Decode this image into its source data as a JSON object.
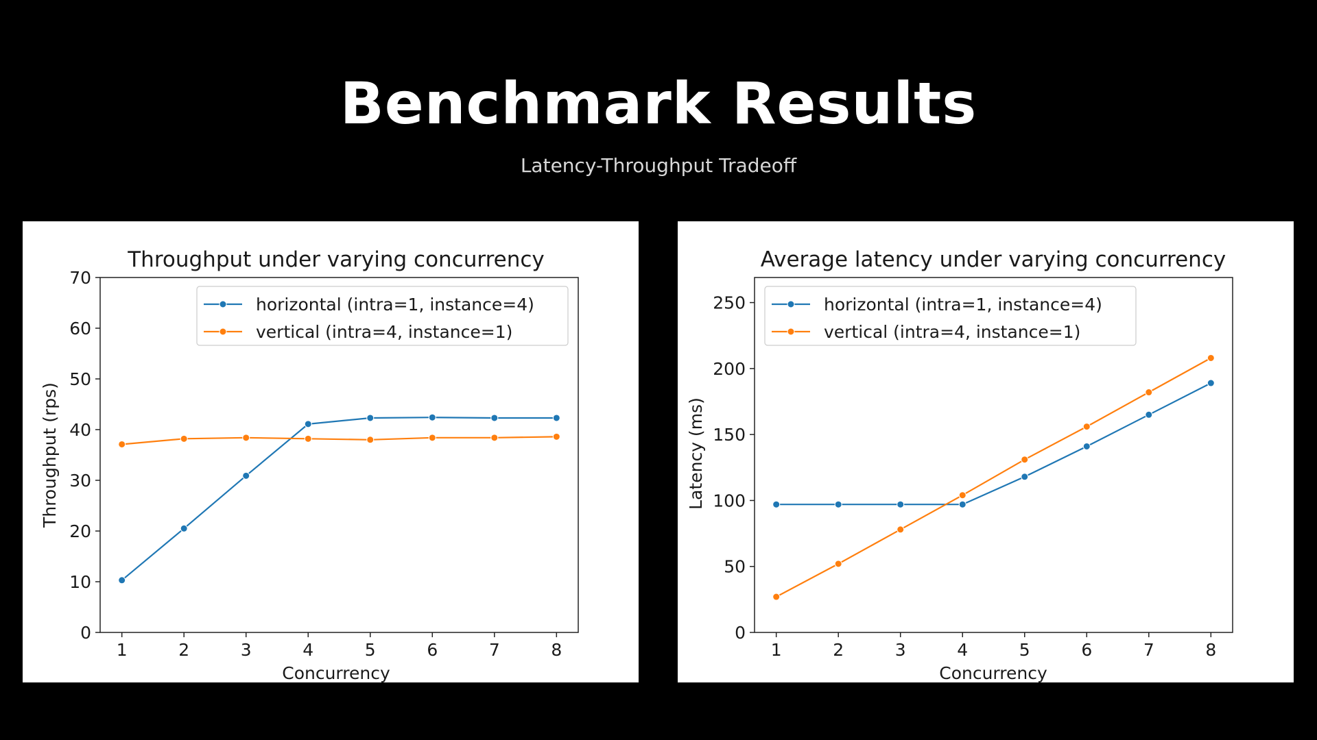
{
  "slide": {
    "title": "Benchmark Results",
    "subtitle": "Latency-Throughput Tradeoff"
  },
  "colors": {
    "horizontal": "#1f77b4",
    "vertical": "#ff7f0e",
    "background": "#000000",
    "panel": "#ffffff"
  },
  "chart_data": [
    {
      "type": "line",
      "title": "Throughput under varying concurrency",
      "xlabel": "Concurrency",
      "ylabel": "Throughput (rps)",
      "x": [
        1,
        2,
        3,
        4,
        5,
        6,
        7,
        8
      ],
      "xticks": [
        "1",
        "2",
        "3",
        "4",
        "5",
        "6",
        "7",
        "8"
      ],
      "xlim": [
        0.65,
        8.35
      ],
      "ylim": [
        0,
        70
      ],
      "yticks": [
        0,
        10,
        20,
        30,
        40,
        50,
        60,
        70
      ],
      "grid": false,
      "legend_position": "upper right",
      "series": [
        {
          "name": "horizontal (intra=1, instance=4)",
          "color": "#1f77b4",
          "values": [
            10.3,
            20.5,
            30.9,
            41.1,
            42.3,
            42.4,
            42.3,
            42.3
          ]
        },
        {
          "name": "vertical (intra=4, instance=1)",
          "color": "#ff7f0e",
          "values": [
            37.1,
            38.2,
            38.4,
            38.2,
            38.0,
            38.4,
            38.4,
            38.6
          ]
        }
      ]
    },
    {
      "type": "line",
      "title": "Average latency under varying concurrency",
      "xlabel": "Concurrency",
      "ylabel": "Latency (ms)",
      "x": [
        1,
        2,
        3,
        4,
        5,
        6,
        7,
        8
      ],
      "xticks": [
        "1",
        "2",
        "3",
        "4",
        "5",
        "6",
        "7",
        "8"
      ],
      "xlim": [
        0.65,
        8.35
      ],
      "ylim": [
        0,
        269
      ],
      "yticks": [
        0,
        50,
        100,
        150,
        200,
        250
      ],
      "grid": false,
      "legend_position": "upper left",
      "series": [
        {
          "name": "horizontal (intra=1, instance=4)",
          "color": "#1f77b4",
          "values": [
            97,
            97,
            97,
            97,
            118,
            141,
            165,
            189
          ]
        },
        {
          "name": "vertical (intra=4, instance=1)",
          "color": "#ff7f0e",
          "values": [
            27,
            52,
            78,
            104,
            131,
            156,
            182,
            208
          ]
        }
      ]
    }
  ]
}
